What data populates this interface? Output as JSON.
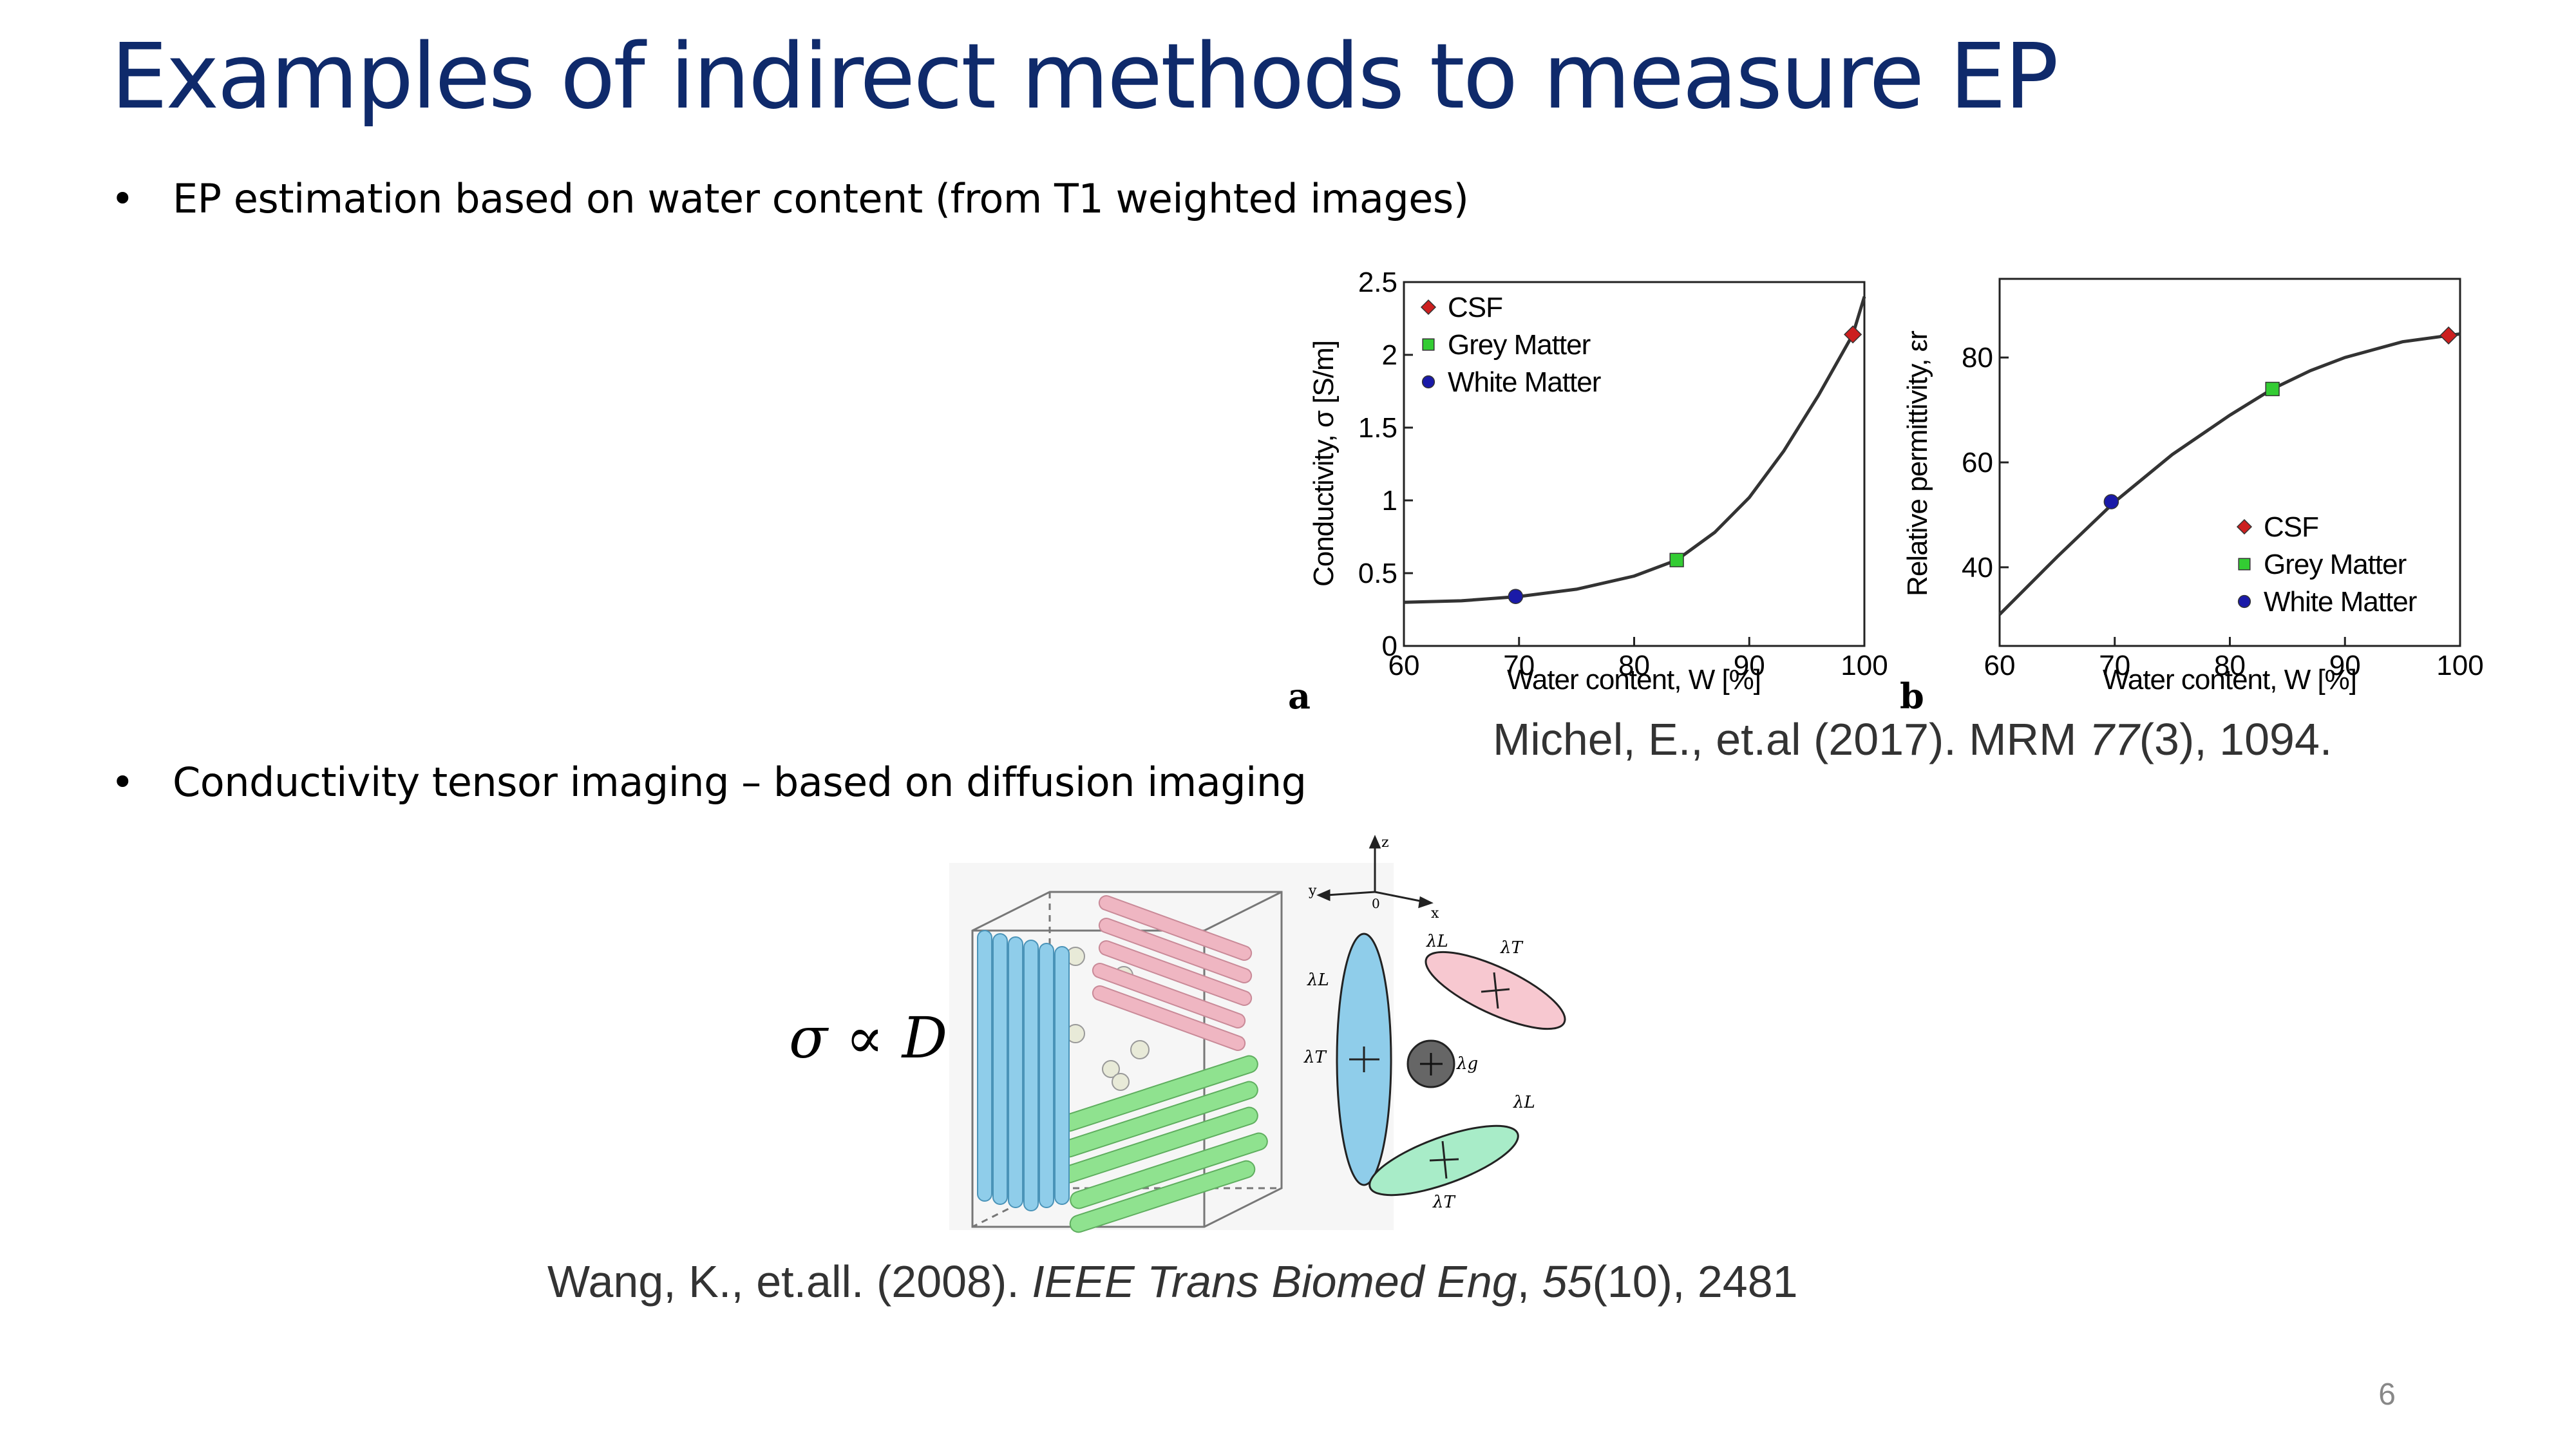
{
  "slide": {
    "title": "Examples of indirect methods to measure EP",
    "bullet1": "EP estimation based on water content  (from T1 weighted images)",
    "bullet2": "Conductivity tensor imaging – based on diffusion imaging",
    "bullet_glyph": "•",
    "citation1": {
      "prefix": "Michel, E., et.al (2017). MRM ",
      "volume": "77",
      "rest": "(3), 1094."
    },
    "citation2": {
      "prefix": "Wang, K., et.all. (2008). ",
      "journal": "IEEE Trans Biomed Eng",
      "sep": ", ",
      "volume": "55",
      "rest": "(10), 2481"
    },
    "formula": "σ ∝ D",
    "page_number": "6"
  },
  "chart_data": [
    {
      "type": "line",
      "panel_label": "a",
      "xlabel": "Water content, W [%]",
      "ylabel": "Conductivity, σ [S/m]",
      "xlim": [
        60,
        100
      ],
      "ylim": [
        0,
        2.5
      ],
      "xticks": [
        60,
        70,
        80,
        90,
        100
      ],
      "yticks": [
        0,
        0.5,
        1,
        1.5,
        2,
        2.5
      ],
      "ytick_labels": [
        "0",
        "0.5",
        "1",
        "1.5",
        "2",
        "2.5"
      ],
      "legend_position": "top-left",
      "curve": {
        "x": [
          60,
          65,
          70,
          75,
          80,
          83.7,
          87,
          90,
          93,
          96,
          99,
          100
        ],
        "y": [
          0.3,
          0.31,
          0.34,
          0.39,
          0.48,
          0.59,
          0.78,
          1.02,
          1.34,
          1.72,
          2.14,
          2.4
        ]
      },
      "points": [
        {
          "name": "CSF",
          "x": 99,
          "y": 2.14,
          "color": "#cc1f1f",
          "marker": "diamond"
        },
        {
          "name": "Grey Matter",
          "x": 83.7,
          "y": 0.59,
          "color": "#33cc33",
          "marker": "square"
        },
        {
          "name": "White Matter",
          "x": 69.7,
          "y": 0.34,
          "color": "#1a1aa8",
          "marker": "circle"
        }
      ]
    },
    {
      "type": "line",
      "panel_label": "b",
      "xlabel": "Water content, W [%]",
      "ylabel": "Relative permittivity, εr",
      "xlim": [
        60,
        100
      ],
      "ylim": [
        25,
        95
      ],
      "xticks": [
        60,
        70,
        80,
        90,
        100
      ],
      "yticks": [
        40,
        60,
        80
      ],
      "ytick_labels": [
        "40",
        "60",
        "80"
      ],
      "legend_position": "bottom-right",
      "curve": {
        "x": [
          60,
          65,
          70,
          75,
          80,
          83.7,
          87,
          90,
          95,
          100
        ],
        "y": [
          31,
          42,
          52.5,
          61.5,
          69,
          74,
          77.5,
          80,
          83,
          84.5
        ]
      },
      "points": [
        {
          "name": "CSF",
          "x": 99,
          "y": 84.2,
          "color": "#cc1f1f",
          "marker": "diamond"
        },
        {
          "name": "Grey Matter",
          "x": 83.7,
          "y": 74,
          "color": "#33cc33",
          "marker": "square"
        },
        {
          "name": "White Matter",
          "x": 69.7,
          "y": 52.5,
          "color": "#1a1aa8",
          "marker": "circle"
        }
      ]
    }
  ],
  "diagram": {
    "axis_labels": {
      "z": "z",
      "y": "y",
      "x": "x",
      "origin": "0"
    },
    "lambda_L": "λL",
    "lambda_T": "λT",
    "lambda_g": "λg",
    "colors": {
      "blue": "#8fcdea",
      "pink": "#efb6c2",
      "green": "#8fe28f",
      "sphere": "#e8ead8",
      "grey": "#666666"
    }
  }
}
